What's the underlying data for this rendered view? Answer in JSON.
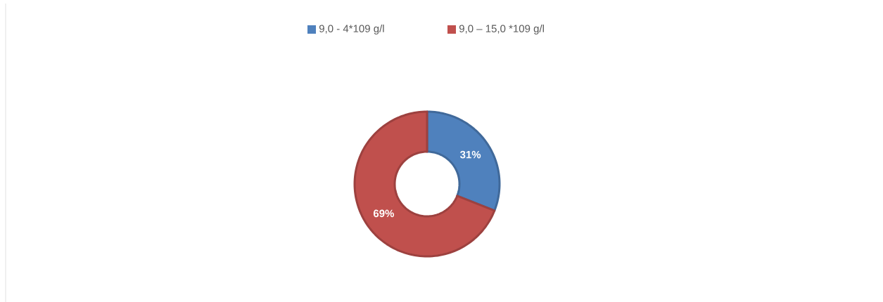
{
  "chart_data": {
    "type": "donut",
    "categories": [
      "9,0 - 4*109 g/l",
      "9,0 – 15,0 *109 g/l"
    ],
    "values": [
      31,
      69
    ],
    "colors": [
      "#4f81bd",
      "#c0504d"
    ],
    "value_labels": [
      "31%",
      "69%"
    ],
    "legend": "top"
  }
}
